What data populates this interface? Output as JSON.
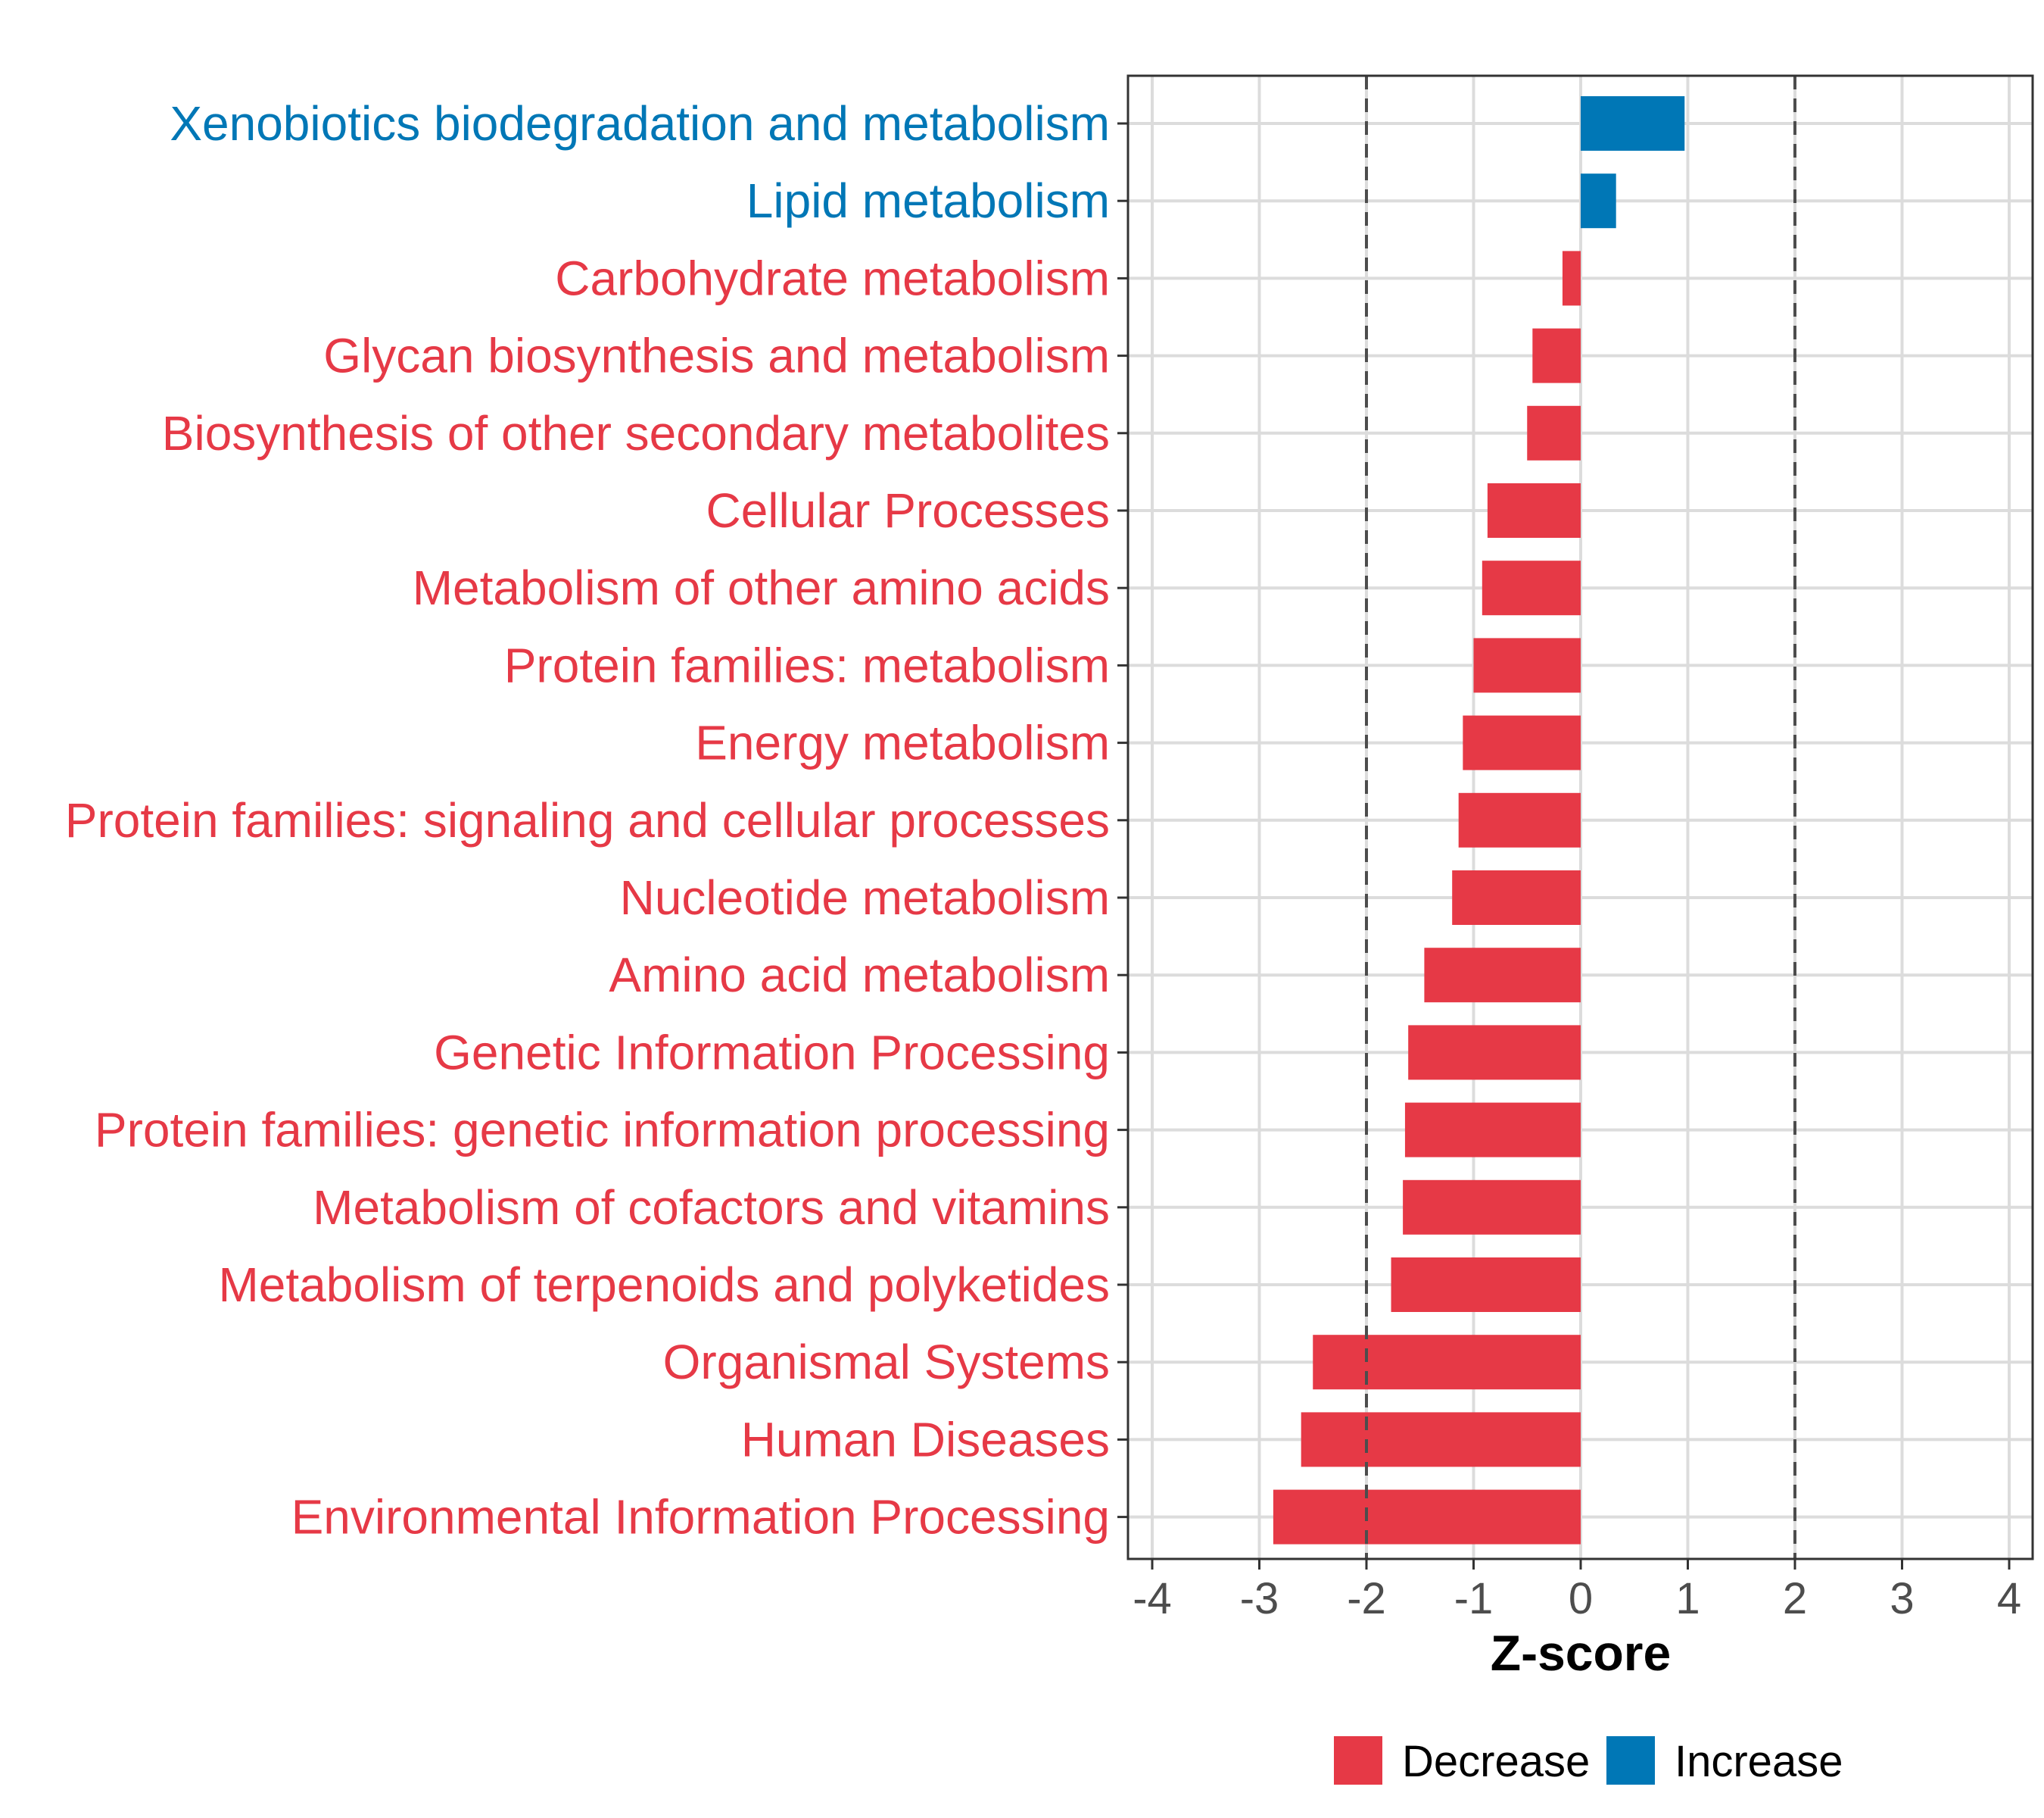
{
  "chart_data": {
    "type": "bar",
    "orientation": "horizontal",
    "title": "",
    "xlabel": "Z-score",
    "ylabel": "",
    "xlim": [
      -4.2,
      4.2
    ],
    "xticks": [
      -4,
      -3,
      -2,
      -1,
      0,
      1,
      2,
      3,
      4
    ],
    "reference_lines": [
      -2,
      2
    ],
    "grid": true,
    "legend_position": "bottom",
    "colors": {
      "Decrease": "#e63946",
      "Increase": "#0077b6"
    },
    "legend": [
      {
        "name": "Decrease",
        "color": "#e63946"
      },
      {
        "name": "Increase",
        "color": "#0077b6"
      }
    ],
    "categories": [
      "Xenobiotics biodegradation and metabolism",
      "Lipid metabolism",
      "Carbohydrate metabolism",
      "Glycan biosynthesis and metabolism",
      "Biosynthesis of other secondary metabolites",
      "Cellular Processes",
      "Metabolism of other amino acids",
      "Protein families: metabolism",
      "Energy metabolism",
      "Protein families: signaling and cellular processes",
      "Nucleotide metabolism",
      "Amino acid metabolism",
      "Genetic Information Processing",
      "Protein families: genetic information processing",
      "Metabolism of cofactors and vitamins",
      "Metabolism of terpenoids and polyketides",
      "Organismal Systems",
      "Human Diseases",
      "Environmental Information Processing"
    ],
    "values": [
      0.97,
      0.33,
      -0.17,
      -0.45,
      -0.5,
      -0.87,
      -0.92,
      -1.0,
      -1.1,
      -1.14,
      -1.2,
      -1.46,
      -1.61,
      -1.64,
      -1.66,
      -1.77,
      -2.5,
      -2.61,
      -2.87
    ],
    "groups": [
      "Increase",
      "Increase",
      "Decrease",
      "Decrease",
      "Decrease",
      "Decrease",
      "Decrease",
      "Decrease",
      "Decrease",
      "Decrease",
      "Decrease",
      "Decrease",
      "Decrease",
      "Decrease",
      "Decrease",
      "Decrease",
      "Decrease",
      "Decrease",
      "Decrease"
    ]
  }
}
